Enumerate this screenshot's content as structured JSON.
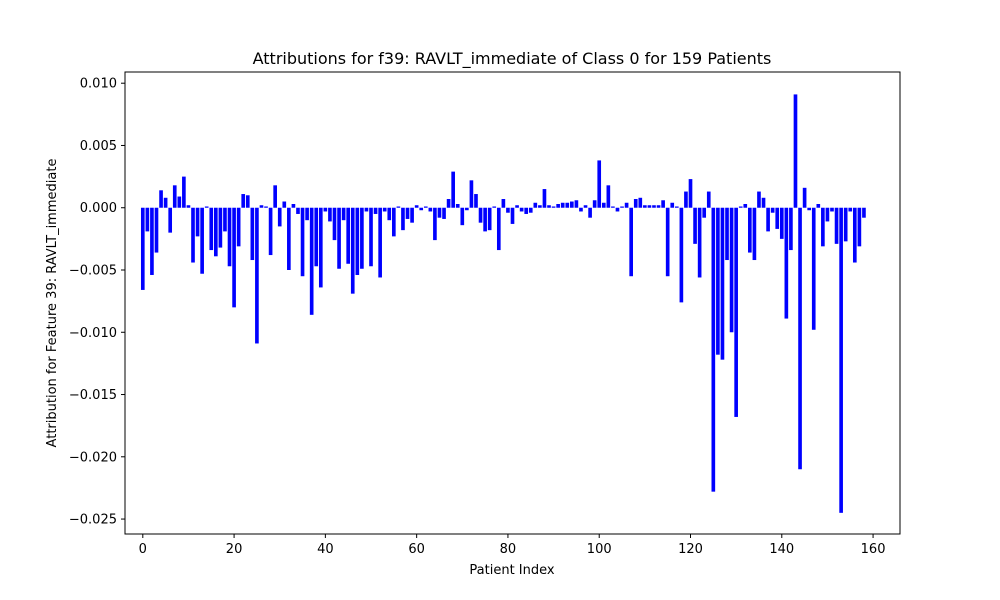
{
  "chart_data": {
    "type": "bar",
    "title": "Attributions for f39: RAVLT_immediate of Class 0 for 159 Patients",
    "xlabel": "Patient Index",
    "ylabel": "Attribution for Feature 39: RAVLT_immediate",
    "xlim": [
      -3.9,
      165.9
    ],
    "ylim": [
      -0.0262,
      0.0109
    ],
    "x_ticks": [
      0,
      20,
      40,
      60,
      80,
      100,
      120,
      140,
      160
    ],
    "x_tick_labels": [
      "0",
      "20",
      "40",
      "60",
      "80",
      "100",
      "120",
      "140",
      "160"
    ],
    "y_ticks": [
      0.01,
      0.005,
      0.0,
      -0.005,
      -0.01,
      -0.015,
      -0.02,
      -0.025
    ],
    "y_tick_labels": [
      "0.010",
      "0.005",
      "0.000",
      "−0.005",
      "−0.010",
      "−0.015",
      "−0.020",
      "−0.025"
    ],
    "grid": false,
    "legend": false,
    "bar_color": "#0000ff",
    "x": [
      0,
      1,
      2,
      3,
      4,
      5,
      6,
      7,
      8,
      9,
      10,
      11,
      12,
      13,
      14,
      15,
      16,
      17,
      18,
      19,
      20,
      21,
      22,
      23,
      24,
      25,
      26,
      27,
      28,
      29,
      30,
      31,
      32,
      33,
      34,
      35,
      36,
      37,
      38,
      39,
      40,
      41,
      42,
      43,
      44,
      45,
      46,
      47,
      48,
      49,
      50,
      51,
      52,
      53,
      54,
      55,
      56,
      57,
      58,
      59,
      60,
      61,
      62,
      63,
      64,
      65,
      66,
      67,
      68,
      69,
      70,
      71,
      72,
      73,
      74,
      75,
      76,
      77,
      78,
      79,
      80,
      81,
      82,
      83,
      84,
      85,
      86,
      87,
      88,
      89,
      90,
      91,
      92,
      93,
      94,
      95,
      96,
      97,
      98,
      99,
      100,
      101,
      102,
      103,
      104,
      105,
      106,
      107,
      108,
      109,
      110,
      111,
      112,
      113,
      114,
      115,
      116,
      117,
      118,
      119,
      120,
      121,
      122,
      123,
      124,
      125,
      126,
      127,
      128,
      129,
      130,
      131,
      132,
      133,
      134,
      135,
      136,
      137,
      138,
      139,
      140,
      141,
      142,
      143,
      144,
      145,
      146,
      147,
      148,
      149,
      150,
      151,
      152,
      153,
      154,
      155,
      156,
      157,
      158
    ],
    "values": [
      -0.0066,
      -0.0019,
      -0.0054,
      -0.0036,
      0.0014,
      0.0008,
      -0.002,
      0.0018,
      0.0009,
      0.0025,
      0.0002,
      -0.0044,
      -0.0023,
      -0.0053,
      0.0001,
      -0.0034,
      -0.0039,
      -0.0032,
      -0.0019,
      -0.0047,
      -0.008,
      -0.0031,
      0.0011,
      0.001,
      -0.0042,
      -0.0109,
      0.0002,
      0.0001,
      -0.0038,
      0.0018,
      -0.0015,
      0.0005,
      -0.005,
      0.0003,
      -0.0005,
      -0.0055,
      -0.001,
      -0.0086,
      -0.0047,
      -0.0064,
      -0.0003,
      -0.0011,
      -0.0026,
      -0.0049,
      -0.001,
      -0.0045,
      -0.0069,
      -0.0054,
      -0.0049,
      -0.0003,
      -0.0047,
      -0.0005,
      -0.0056,
      -0.0003,
      -0.001,
      -0.0023,
      0.0001,
      -0.0018,
      -0.0009,
      -0.0012,
      0.0002,
      -0.0002,
      0.0001,
      -0.0003,
      -0.0026,
      -0.0008,
      -0.0009,
      0.0007,
      0.0029,
      0.0003,
      -0.0014,
      -0.0002,
      0.0022,
      0.0011,
      -0.0012,
      -0.0019,
      -0.0018,
      0.0001,
      -0.0034,
      0.0007,
      -0.0004,
      -0.0013,
      0.0002,
      -0.0003,
      -0.0005,
      -0.0004,
      0.0004,
      0.0002,
      0.0015,
      0.0002,
      0.0001,
      0.0003,
      0.0004,
      0.0004,
      0.0005,
      0.0006,
      -0.0003,
      0.0002,
      -0.0008,
      0.0006,
      0.0038,
      0.0004,
      0.0018,
      0.0001,
      -0.0003,
      0.0001,
      0.0004,
      -0.0055,
      0.0007,
      0.0008,
      0.0002,
      0.0002,
      0.0002,
      0.0002,
      0.0006,
      -0.0055,
      0.0004,
      0.0001,
      -0.0076,
      0.0013,
      0.0023,
      -0.0029,
      -0.0056,
      -0.0008,
      0.0013,
      -0.0228,
      -0.0118,
      -0.0122,
      -0.0042,
      -0.01,
      -0.0168,
      0.0001,
      0.0003,
      -0.0036,
      -0.0042,
      0.0013,
      0.0008,
      -0.0019,
      -0.0004,
      -0.0017,
      -0.0025,
      -0.0089,
      -0.0034,
      0.0091,
      -0.021,
      0.0016,
      -0.0002,
      -0.0098,
      0.0003,
      -0.0031,
      -0.0011,
      -0.0003,
      -0.0029,
      -0.0245,
      -0.0027,
      -0.0003,
      -0.0044,
      -0.0031,
      -0.0008
    ]
  }
}
